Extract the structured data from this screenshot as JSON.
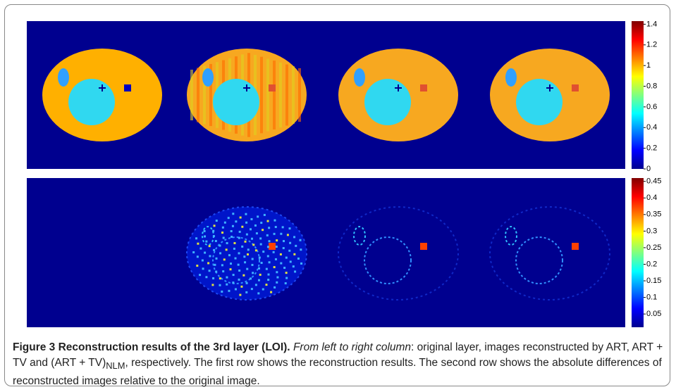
{
  "figure": {
    "colorbars": [
      {
        "lim": [
          0,
          1.43
        ],
        "ticks": [
          0,
          0.2,
          0.4,
          0.6,
          0.8,
          1,
          1.2,
          1.4
        ]
      },
      {
        "lim": [
          0.01,
          0.46
        ],
        "ticks": [
          0.05,
          0.1,
          0.15,
          0.2,
          0.25,
          0.3,
          0.35,
          0.4,
          0.45
        ]
      }
    ],
    "caption": {
      "label": "Figure 3",
      "title": "Reconstruction results of the 3rd layer (LOI).",
      "lead": "From left to right column",
      "text1": ": original layer, images reconstructed by ART, ART + TV and (ART + TV)",
      "sub": "NLM",
      "text2": ", respectively. The first row shows the reconstruction results. The second row shows the absolute differences of reconstructed images relative to the original image."
    }
  }
}
